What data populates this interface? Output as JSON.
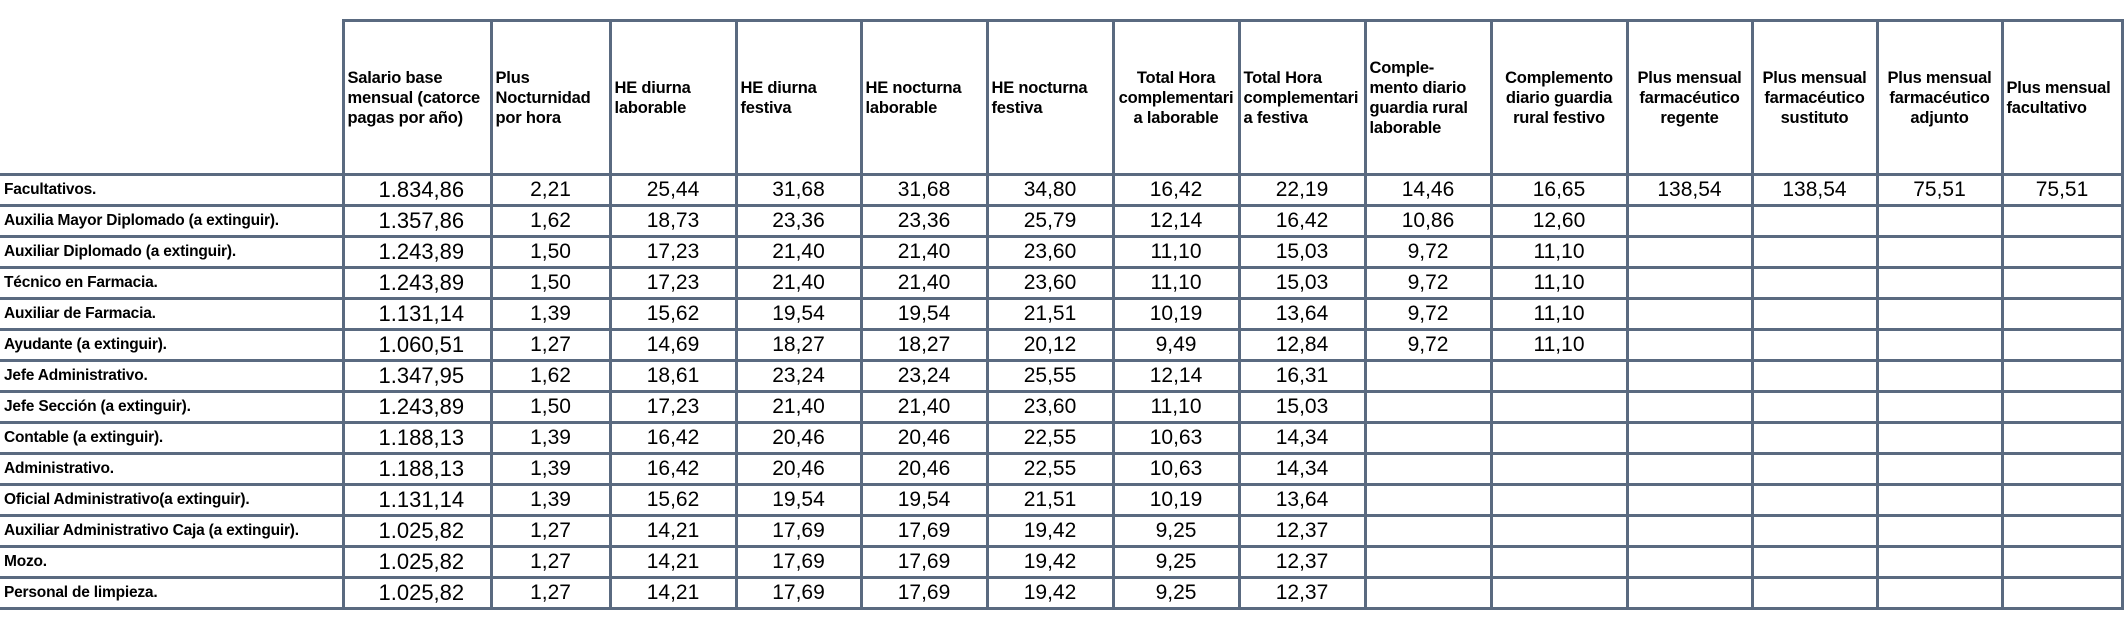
{
  "columns": [
    "Salario base mensual (catorce pagas por año)",
    "Plus Nocturnidad por hora",
    "HE diurna laborable",
    "HE diurna festiva",
    "HE nocturna laborable",
    "HE nocturna festiva",
    "Total Hora complementari a laborable",
    "Total Hora complementari a festiva",
    "Comple- mento diario guardia rural laborable",
    "Complemento diario guardia rural festivo",
    "Plus mensual farmacéutico regente",
    "Plus mensual farmacéutico sustituto",
    "Plus mensual farmacéutico adjunto",
    "Plus mensual facultativo"
  ],
  "rows": [
    {
      "category": "Facultativos.",
      "values": [
        "1.834,86",
        "2,21",
        "25,44",
        "31,68",
        "31,68",
        "34,80",
        "16,42",
        "22,19",
        "14,46",
        "16,65",
        "138,54",
        "138,54",
        "75,51",
        "75,51"
      ]
    },
    {
      "category": "Auxilia Mayor Diplomado (a extinguir).",
      "values": [
        "1.357,86",
        "1,62",
        "18,73",
        "23,36",
        "23,36",
        "25,79",
        "12,14",
        "16,42",
        "10,86",
        "12,60",
        "",
        "",
        "",
        ""
      ]
    },
    {
      "category": "Auxiliar Diplomado (a extinguir).",
      "values": [
        "1.243,89",
        "1,50",
        "17,23",
        "21,40",
        "21,40",
        "23,60",
        "11,10",
        "15,03",
        "9,72",
        "11,10",
        "",
        "",
        "",
        ""
      ]
    },
    {
      "category": "Técnico en Farmacia.",
      "values": [
        "1.243,89",
        "1,50",
        "17,23",
        "21,40",
        "21,40",
        "23,60",
        "11,10",
        "15,03",
        "9,72",
        "11,10",
        "",
        "",
        "",
        ""
      ]
    },
    {
      "category": "Auxiliar de Farmacia.",
      "values": [
        "1.131,14",
        "1,39",
        "15,62",
        "19,54",
        "19,54",
        "21,51",
        "10,19",
        "13,64",
        "9,72",
        "11,10",
        "",
        "",
        "",
        ""
      ]
    },
    {
      "category": "Ayudante (a extinguir).",
      "values": [
        "1.060,51",
        "1,27",
        "14,69",
        "18,27",
        "18,27",
        "20,12",
        "9,49",
        "12,84",
        "9,72",
        "11,10",
        "",
        "",
        "",
        ""
      ]
    },
    {
      "category": "Jefe Administrativo.",
      "values": [
        "1.347,95",
        "1,62",
        "18,61",
        "23,24",
        "23,24",
        "25,55",
        "12,14",
        "16,31",
        "",
        "",
        "",
        "",
        "",
        ""
      ]
    },
    {
      "category": "Jefe Sección (a extinguir).",
      "values": [
        "1.243,89",
        "1,50",
        "17,23",
        "21,40",
        "21,40",
        "23,60",
        "11,10",
        "15,03",
        "",
        "",
        "",
        "",
        "",
        ""
      ]
    },
    {
      "category": "Contable (a extinguir).",
      "values": [
        "1.188,13",
        "1,39",
        "16,42",
        "20,46",
        "20,46",
        "22,55",
        "10,63",
        "14,34",
        "",
        "",
        "",
        "",
        "",
        ""
      ]
    },
    {
      "category": "Administrativo.",
      "values": [
        "1.188,13",
        "1,39",
        "16,42",
        "20,46",
        "20,46",
        "22,55",
        "10,63",
        "14,34",
        "",
        "",
        "",
        "",
        "",
        ""
      ]
    },
    {
      "category": "Oficial Administrativo(a extinguir).",
      "values": [
        "1.131,14",
        "1,39",
        "15,62",
        "19,54",
        "19,54",
        "21,51",
        "10,19",
        "13,64",
        "",
        "",
        "",
        "",
        "",
        ""
      ]
    },
    {
      "category": "Auxiliar Administrativo Caja (a extinguir).",
      "values": [
        "1.025,82",
        "1,27",
        "14,21",
        "17,69",
        "17,69",
        "19,42",
        "9,25",
        "12,37",
        "",
        "",
        "",
        "",
        "",
        ""
      ]
    },
    {
      "category": "Mozo.",
      "values": [
        "1.025,82",
        "1,27",
        "14,21",
        "17,69",
        "17,69",
        "19,42",
        "9,25",
        "12,37",
        "",
        "",
        "",
        "",
        "",
        ""
      ]
    },
    {
      "category": "Personal de limpieza.",
      "values": [
        "1.025,82",
        "1,27",
        "14,21",
        "17,69",
        "17,69",
        "19,42",
        "9,25",
        "12,37",
        "",
        "",
        "",
        "",
        "",
        ""
      ]
    }
  ]
}
